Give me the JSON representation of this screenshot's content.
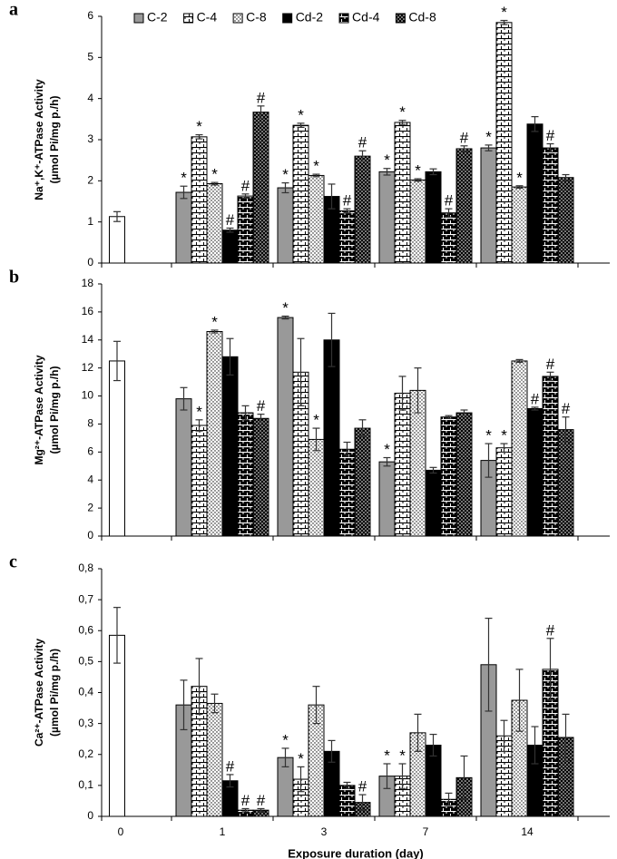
{
  "chart_data": [
    {
      "type": "bar",
      "panel": "a",
      "ylabel": "Na⁺,K⁺-ATPase Activity",
      "ylabel2": "(µmol Pi/mg p./h)",
      "ylim": [
        0,
        6
      ],
      "yticks": [
        0,
        1,
        2,
        3,
        4,
        5,
        6
      ],
      "legend": "top",
      "series": [
        {
          "color": "#ffffff",
          "pattern": "none",
          "values": [
            1.13,
            null,
            null,
            null,
            null
          ],
          "errors": [
            0.12,
            null,
            null,
            null,
            null
          ],
          "markers": [
            null,
            null,
            null,
            null,
            null
          ]
        },
        {
          "name": "C-2",
          "color": "#999999",
          "pattern": "none",
          "values": [
            null,
            1.72,
            1.83,
            2.22,
            2.8
          ],
          "errors": [
            null,
            0.15,
            0.12,
            0.08,
            0.07
          ],
          "markers": [
            null,
            "*",
            "*",
            "*",
            "*"
          ]
        },
        {
          "name": "C-4",
          "color": "#ffffff",
          "pattern": "brick",
          "values": [
            null,
            3.07,
            3.35,
            3.42,
            5.85
          ],
          "errors": [
            null,
            0.05,
            0.05,
            0.05,
            0.05
          ],
          "markers": [
            null,
            "*",
            "*",
            "*",
            "*"
          ]
        },
        {
          "name": "C-8",
          "color": "#ffffff",
          "pattern": "dots",
          "values": [
            null,
            1.93,
            2.13,
            2.02,
            1.85
          ],
          "errors": [
            null,
            0.03,
            0.03,
            0.03,
            0.03
          ],
          "markers": [
            null,
            "*",
            "*",
            "*",
            "*"
          ]
        },
        {
          "name": "Cd-2",
          "color": "#000000",
          "pattern": "none",
          "values": [
            null,
            0.8,
            1.62,
            2.22,
            3.38
          ],
          "errors": [
            null,
            0.05,
            0.3,
            0.07,
            0.18
          ],
          "markers": [
            null,
            "#",
            null,
            null,
            null
          ]
        },
        {
          "name": "Cd-4",
          "color": "#000000",
          "pattern": "brick",
          "values": [
            null,
            1.63,
            1.27,
            1.22,
            2.8
          ],
          "errors": [
            null,
            0.05,
            0.05,
            0.1,
            0.1
          ],
          "markers": [
            null,
            "#",
            "#",
            "#",
            "#"
          ]
        },
        {
          "name": "Cd-8",
          "color": "#000000",
          "pattern": "dots",
          "values": [
            null,
            3.67,
            2.6,
            2.78,
            2.08
          ],
          "errors": [
            null,
            0.15,
            0.13,
            0.07,
            0.07
          ],
          "markers": [
            null,
            "#",
            "#",
            "#",
            null
          ]
        }
      ]
    },
    {
      "type": "bar",
      "panel": "b",
      "ylabel": "Mg²⁺-ATPase Activity",
      "ylabel2": "(µmol Pi/mg p./h)",
      "ylim": [
        0,
        18
      ],
      "yticks": [
        0,
        2,
        4,
        6,
        8,
        10,
        12,
        14,
        16,
        18
      ],
      "series": [
        {
          "color": "#ffffff",
          "pattern": "none",
          "values": [
            12.5,
            null,
            null,
            null,
            null
          ],
          "errors": [
            1.4,
            null,
            null,
            null,
            null
          ],
          "markers": [
            null,
            null,
            null,
            null,
            null
          ]
        },
        {
          "color": "#999999",
          "pattern": "none",
          "values": [
            null,
            9.8,
            15.6,
            5.3,
            5.4
          ],
          "errors": [
            null,
            0.8,
            0.1,
            0.3,
            1.2
          ],
          "markers": [
            null,
            null,
            "*",
            "*",
            "*"
          ]
        },
        {
          "color": "#ffffff",
          "pattern": "brick",
          "values": [
            null,
            7.9,
            11.7,
            10.2,
            6.3
          ],
          "errors": [
            null,
            0.4,
            2.4,
            1.2,
            0.3
          ],
          "markers": [
            null,
            "*",
            null,
            null,
            "*"
          ]
        },
        {
          "color": "#ffffff",
          "pattern": "dots",
          "values": [
            null,
            14.6,
            6.9,
            10.4,
            12.5
          ],
          "errors": [
            null,
            0.1,
            0.8,
            1.6,
            0.1
          ],
          "markers": [
            null,
            "*",
            "*",
            null,
            null
          ]
        },
        {
          "color": "#000000",
          "pattern": "none",
          "values": [
            null,
            12.8,
            14.0,
            4.7,
            9.1
          ],
          "errors": [
            null,
            1.3,
            1.9,
            0.2,
            0.1
          ],
          "markers": [
            null,
            null,
            null,
            null,
            "#"
          ]
        },
        {
          "color": "#000000",
          "pattern": "brick",
          "values": [
            null,
            8.8,
            6.2,
            8.5,
            11.4
          ],
          "errors": [
            null,
            0.5,
            0.5,
            0.1,
            0.3
          ],
          "markers": [
            null,
            null,
            null,
            null,
            "#"
          ]
        },
        {
          "color": "#000000",
          "pattern": "dots",
          "values": [
            null,
            8.4,
            7.7,
            8.8,
            7.6
          ],
          "errors": [
            null,
            0.3,
            0.6,
            0.2,
            0.9
          ],
          "markers": [
            null,
            "#",
            null,
            null,
            "#"
          ]
        }
      ]
    },
    {
      "type": "bar",
      "panel": "c",
      "ylabel": "Ca²⁺-ATPase Activity",
      "ylabel2": "(µmol Pi/mg p./h)",
      "xlabel": "Exposure duration (day)",
      "categories": [
        "0",
        "1",
        "3",
        "7",
        "14"
      ],
      "ylim": [
        0,
        0.8
      ],
      "yticks": [
        0,
        {
          "value": 0.1,
          "label": "0,1"
        },
        {
          "value": 0.2,
          "label": "0,2"
        },
        {
          "value": 0.3,
          "label": "0,3"
        },
        {
          "value": 0.4,
          "label": "0,4"
        },
        {
          "value": 0.5,
          "label": "0,5"
        },
        {
          "value": 0.6,
          "label": "0,6"
        },
        {
          "value": 0.7,
          "label": "0,7"
        },
        {
          "value": 0.8,
          "label": "0,8"
        }
      ],
      "series": [
        {
          "color": "#ffffff",
          "pattern": "none",
          "values": [
            0.585,
            null,
            null,
            null,
            null
          ],
          "errors": [
            0.09,
            null,
            null,
            null,
            null
          ],
          "markers": [
            null,
            null,
            null,
            null,
            null
          ]
        },
        {
          "color": "#999999",
          "pattern": "none",
          "values": [
            null,
            0.36,
            0.19,
            0.13,
            0.49
          ],
          "errors": [
            null,
            0.08,
            0.03,
            0.04,
            0.15
          ],
          "markers": [
            null,
            null,
            "*",
            "*",
            null
          ]
        },
        {
          "color": "#ffffff",
          "pattern": "brick",
          "values": [
            null,
            0.42,
            0.12,
            0.13,
            0.26
          ],
          "errors": [
            null,
            0.09,
            0.04,
            0.04,
            0.05
          ],
          "markers": [
            null,
            null,
            "*",
            "*",
            null
          ]
        },
        {
          "color": "#ffffff",
          "pattern": "dots",
          "values": [
            null,
            0.365,
            0.36,
            0.27,
            0.375
          ],
          "errors": [
            null,
            0.03,
            0.06,
            0.06,
            0.1
          ],
          "markers": [
            null,
            null,
            null,
            null,
            null
          ]
        },
        {
          "color": "#000000",
          "pattern": "none",
          "values": [
            null,
            0.115,
            0.21,
            0.23,
            0.23
          ],
          "errors": [
            null,
            0.02,
            0.035,
            0.035,
            0.06
          ],
          "markers": [
            null,
            "#",
            null,
            null,
            null
          ]
        },
        {
          "color": "#000000",
          "pattern": "brick",
          "values": [
            null,
            0.02,
            0.1,
            0.055,
            0.475
          ],
          "errors": [
            null,
            0.005,
            0.01,
            0.02,
            0.1
          ],
          "markers": [
            null,
            "#",
            null,
            null,
            "#"
          ]
        },
        {
          "color": "#000000",
          "pattern": "dots",
          "values": [
            null,
            0.02,
            0.045,
            0.125,
            0.255
          ],
          "errors": [
            null,
            0.005,
            0.025,
            0.07,
            0.075
          ],
          "markers": [
            null,
            "#",
            "#",
            null,
            null
          ]
        }
      ]
    }
  ]
}
